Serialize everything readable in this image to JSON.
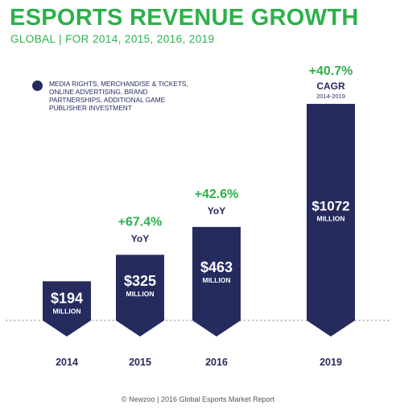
{
  "chart_data": {
    "type": "bar",
    "title": "ESPORTS REVENUE GROWTH",
    "subtitle": "GLOBAL | FOR 2014, 2015, 2016, 2019",
    "categories": [
      "2014",
      "2015",
      "2016",
      "2019"
    ],
    "values": [
      194,
      325,
      463,
      1072
    ],
    "value_labels": [
      "$194",
      "$325",
      "$463",
      "$1072"
    ],
    "unit_label": "MILLION",
    "series": [
      {
        "name": "MEDIA RIGHTS, MERCHANDISE & TICKETS, ONLINE ADVERTISING, BRAND PARTNERSHIPS, ADDITIONAL GAME PUBLISHER INVESTMENT",
        "values": [
          194,
          325,
          463,
          1072
        ]
      }
    ],
    "growth": [
      {
        "category": "2015",
        "value": "+67.4%",
        "label": "YoY"
      },
      {
        "category": "2016",
        "value": "+42.6%",
        "label": "YoY"
      },
      {
        "category": "2019",
        "value": "+40.7%",
        "label": "CAGR",
        "sublabel": "2014-2019"
      }
    ],
    "legend_position": "top-left",
    "grid": false,
    "colors": {
      "bar": "#262B5E",
      "accent": "#2DB04B",
      "baseline": "#C8C8C8"
    }
  },
  "footer": "© Newzoo | 2016 Global Esports Market Report"
}
